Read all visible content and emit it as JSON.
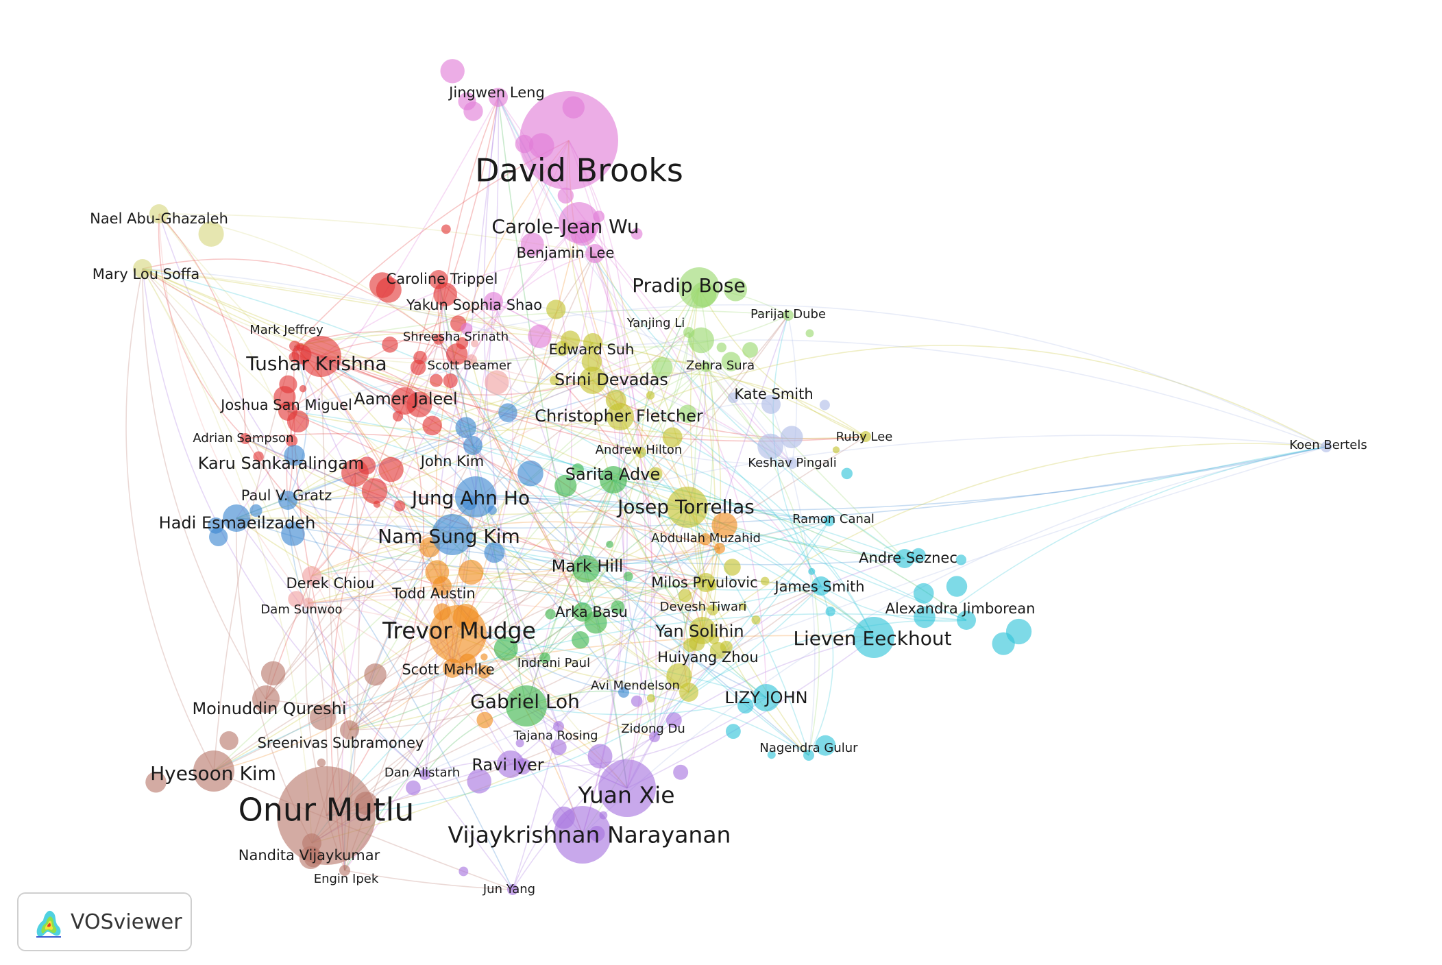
{
  "network": {
    "clusters": [
      {
        "id": "pink",
        "color": "#e07ad6"
      },
      {
        "id": "red",
        "color": "#e23636"
      },
      {
        "id": "blue",
        "color": "#3a86d0"
      },
      {
        "id": "orange",
        "color": "#f08a1c"
      },
      {
        "id": "green",
        "color": "#3cb54a"
      },
      {
        "id": "lightgreen",
        "color": "#9ad86e"
      },
      {
        "id": "olive",
        "color": "#c4c22c"
      },
      {
        "id": "cyan",
        "color": "#2ec4d8"
      },
      {
        "id": "purple",
        "color": "#a672de"
      },
      {
        "id": "brown",
        "color": "#b8786a"
      },
      {
        "id": "salmon",
        "color": "#f0a0a0"
      },
      {
        "id": "khaki",
        "color": "#d6d680"
      },
      {
        "id": "lavender",
        "color": "#aebbe6"
      }
    ],
    "nodes": [
      {
        "label": "Jingwen Leng",
        "cluster": "pink",
        "tier": 2
      },
      {
        "label": "David Brooks",
        "cluster": "pink",
        "tier": 6
      },
      {
        "label": "Carole-Jean Wu",
        "cluster": "pink",
        "tier": 4
      },
      {
        "label": "Benjamin Lee",
        "cluster": "pink",
        "tier": 2
      },
      {
        "label": "Yakun Sophia Shao",
        "cluster": "pink",
        "tier": 2
      },
      {
        "label": "Nael Abu-Ghazaleh",
        "cluster": "khaki",
        "tier": 2
      },
      {
        "label": "Mary Lou Soffa",
        "cluster": "khaki",
        "tier": 2
      },
      {
        "label": "Caroline Trippel",
        "cluster": "red",
        "tier": 2
      },
      {
        "label": "Mark Jeffrey",
        "cluster": "red",
        "tier": 1
      },
      {
        "label": "Shreesha Srinath",
        "cluster": "red",
        "tier": 1
      },
      {
        "label": "Tushar Krishna",
        "cluster": "red",
        "tier": 4
      },
      {
        "label": "Scott Beamer",
        "cluster": "salmon",
        "tier": 1
      },
      {
        "label": "Joshua San Miguel",
        "cluster": "red",
        "tier": 2
      },
      {
        "label": "Aamer Jaleel",
        "cluster": "red",
        "tier": 3
      },
      {
        "label": "Adrian Sampson",
        "cluster": "red",
        "tier": 1
      },
      {
        "label": "Karu Sankaralingam",
        "cluster": "red",
        "tier": 3
      },
      {
        "label": "Paul V. Gratz",
        "cluster": "blue",
        "tier": 2
      },
      {
        "label": "Hadi Esmaeilzadeh",
        "cluster": "blue",
        "tier": 3
      },
      {
        "label": "John Kim",
        "cluster": "blue",
        "tier": 2
      },
      {
        "label": "Jung Ahn Ho",
        "cluster": "blue",
        "tier": 4
      },
      {
        "label": "Nam Sung Kim",
        "cluster": "blue",
        "tier": 4
      },
      {
        "label": "Derek Chiou",
        "cluster": "salmon",
        "tier": 2
      },
      {
        "label": "Dam Sunwoo",
        "cluster": "salmon",
        "tier": 1
      },
      {
        "label": "Todd Austin",
        "cluster": "orange",
        "tier": 2
      },
      {
        "label": "Trevor Mudge",
        "cluster": "orange",
        "tier": 5
      },
      {
        "label": "Scott Mahlke",
        "cluster": "orange",
        "tier": 2
      },
      {
        "label": "Moinuddin Qureshi",
        "cluster": "brown",
        "tier": 3
      },
      {
        "label": "Sreenivas Subramoney",
        "cluster": "brown",
        "tier": 2
      },
      {
        "label": "Hyesoon Kim",
        "cluster": "brown",
        "tier": 4
      },
      {
        "label": "Onur Mutlu",
        "cluster": "brown",
        "tier": 6
      },
      {
        "label": "Nandita Vijaykumar",
        "cluster": "brown",
        "tier": 2
      },
      {
        "label": "Engin Ipek",
        "cluster": "brown",
        "tier": 1
      },
      {
        "label": "Dan Alistarh",
        "cluster": "purple",
        "tier": 1
      },
      {
        "label": "Ravi Iyer",
        "cluster": "purple",
        "tier": 3
      },
      {
        "label": "Yuan Xie",
        "cluster": "purple",
        "tier": 5
      },
      {
        "label": "Vijaykrishnan Narayanan",
        "cluster": "purple",
        "tier": 5
      },
      {
        "label": "Jun Yang",
        "cluster": "purple",
        "tier": 1
      },
      {
        "label": "Tajana Rosing",
        "cluster": "purple",
        "tier": 1
      },
      {
        "label": "Zidong Du",
        "cluster": "purple",
        "tier": 1
      },
      {
        "label": "Gabriel Loh",
        "cluster": "green",
        "tier": 4
      },
      {
        "label": "Indrani Paul",
        "cluster": "green",
        "tier": 1
      },
      {
        "label": "Arka Basu",
        "cluster": "green",
        "tier": 2
      },
      {
        "label": "Mark Hill",
        "cluster": "green",
        "tier": 3
      },
      {
        "label": "Sarita Adve",
        "cluster": "green",
        "tier": 3
      },
      {
        "label": "Andrew Hilton",
        "cluster": "olive",
        "tier": 1
      },
      {
        "label": "Edward Suh",
        "cluster": "olive",
        "tier": 2
      },
      {
        "label": "Srini Devadas",
        "cluster": "olive",
        "tier": 3
      },
      {
        "label": "Christopher Fletcher",
        "cluster": "olive",
        "tier": 3
      },
      {
        "label": "Josep Torrellas",
        "cluster": "olive",
        "tier": 4
      },
      {
        "label": "Abdullah Muzahid",
        "cluster": "orange",
        "tier": 1
      },
      {
        "label": "Milos Prvulovic",
        "cluster": "olive",
        "tier": 2
      },
      {
        "label": "Devesh Tiwari",
        "cluster": "olive",
        "tier": 1
      },
      {
        "label": "Yan Solihin",
        "cluster": "olive",
        "tier": 3
      },
      {
        "label": "Huiyang Zhou",
        "cluster": "olive",
        "tier": 2
      },
      {
        "label": "Avi Mendelson",
        "cluster": "blue",
        "tier": 1
      },
      {
        "label": "Pradip Bose",
        "cluster": "lightgreen",
        "tier": 4
      },
      {
        "label": "Yanjing Li",
        "cluster": "lightgreen",
        "tier": 1
      },
      {
        "label": "Parijat Dube",
        "cluster": "lightgreen",
        "tier": 1
      },
      {
        "label": "Zehra Sura",
        "cluster": "lightgreen",
        "tier": 1
      },
      {
        "label": "Kate Smith",
        "cluster": "lavender",
        "tier": 2
      },
      {
        "label": "Ruby Lee",
        "cluster": "olive",
        "tier": 1
      },
      {
        "label": "Keshav Pingali",
        "cluster": "lavender",
        "tier": 1
      },
      {
        "label": "Ramon Canal",
        "cluster": "cyan",
        "tier": 1
      },
      {
        "label": "Andre Seznec",
        "cluster": "cyan",
        "tier": 2
      },
      {
        "label": "James Smith",
        "cluster": "cyan",
        "tier": 2
      },
      {
        "label": "Alexandra Jimborean",
        "cluster": "cyan",
        "tier": 2
      },
      {
        "label": "Lieven Eeckhout",
        "cluster": "cyan",
        "tier": 4
      },
      {
        "label": "LIZY JOHN",
        "cluster": "cyan",
        "tier": 3
      },
      {
        "label": "Nagendra Gulur",
        "cluster": "cyan",
        "tier": 1
      },
      {
        "label": "Koen Bertels",
        "cluster": "lavender",
        "tier": 1
      }
    ]
  },
  "logo": {
    "text": "VOSviewer"
  }
}
